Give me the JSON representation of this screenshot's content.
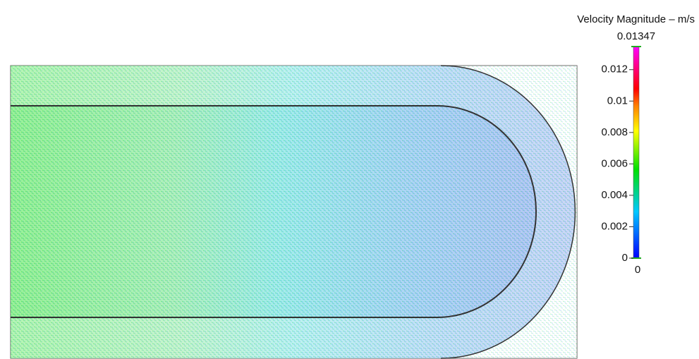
{
  "colorbar": {
    "title": "Velocity Magnitude – m/s",
    "range": [
      0,
      0.01347
    ],
    "max_label": "0.01347",
    "min_label": "0",
    "ticks": [
      0.012,
      0.01,
      0.008,
      0.006,
      0.004,
      0.002,
      0
    ]
  }
}
